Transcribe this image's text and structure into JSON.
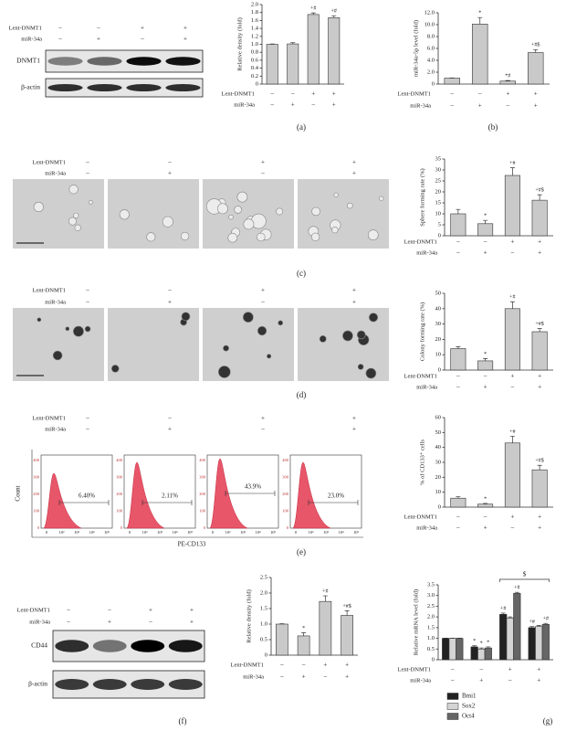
{
  "chart_data": [
    {
      "type": "bar",
      "ylabel": "Relative density (fold)",
      "ylim": [
        0,
        2
      ],
      "yticks": [
        0,
        0.2,
        0.4,
        0.6,
        0.8,
        {
          "value": 1,
          "label": "1.0"
        },
        1.2,
        1.4,
        1.6,
        1.8,
        {
          "value": 2,
          "label": "2.0"
        }
      ],
      "values": [
        1.0,
        1.01,
        1.75,
        1.67
      ],
      "errors": [
        0.01,
        0.03,
        0.04,
        0.05
      ],
      "annotations": [
        null,
        null,
        "+#",
        "+#"
      ],
      "color": "#c9c9c9",
      "conditions": [
        {
          "label": "Lent-DNMT1",
          "signs": [
            "–",
            "–",
            "+",
            "+"
          ]
        },
        {
          "label": "miR-34a",
          "signs": [
            "–",
            "+",
            "–",
            "+"
          ]
        }
      ]
    },
    {
      "type": "bar",
      "ylabel": "miR-34a-5p level (fold)",
      "ylim": [
        0,
        12
      ],
      "yticks": [
        0,
        {
          "value": 2,
          "label": "2.0"
        },
        {
          "value": 4,
          "label": "4.0"
        },
        {
          "value": 6,
          "label": "6.0"
        },
        {
          "value": 8,
          "label": "8.0"
        },
        {
          "value": 10,
          "label": "10.0"
        },
        {
          "value": 12,
          "label": "12.0"
        }
      ],
      "values": [
        1.0,
        10.1,
        0.5,
        5.3
      ],
      "errors": [
        0.05,
        1.1,
        0.1,
        0.5
      ],
      "annotations": [
        null,
        "*",
        "*#",
        "+#$"
      ],
      "color": "#c9c9c9",
      "conditions": [
        {
          "label": "Lent-DNMT1",
          "signs": [
            "–",
            "–",
            "+",
            "+"
          ]
        },
        {
          "label": "miR-34a",
          "signs": [
            "–",
            "+",
            "–",
            "+"
          ]
        }
      ]
    },
    {
      "type": "bar",
      "ylabel": "Sphere forming rate (%)",
      "ylim": [
        0,
        35
      ],
      "yticks": [
        0,
        5,
        10,
        15,
        20,
        25,
        30,
        35
      ],
      "values": [
        10,
        5.5,
        27.5,
        16.2
      ],
      "errors": [
        2,
        1.5,
        3.5,
        2.5
      ],
      "annotations": [
        null,
        "*",
        "+#",
        "+#$"
      ],
      "color": "#c9c9c9",
      "conditions": [
        {
          "label": "Lent-DNMT1",
          "signs": [
            "–",
            "–",
            "+",
            "+"
          ]
        },
        {
          "label": "miR-34a",
          "signs": [
            "–",
            "+",
            "–",
            "+"
          ]
        }
      ]
    },
    {
      "type": "bar",
      "ylabel": "Colony forming rate (%)",
      "ylim": [
        0,
        50
      ],
      "yticks": [
        0,
        10,
        20,
        30,
        40,
        50
      ],
      "values": [
        14,
        6,
        40,
        25
      ],
      "errors": [
        1.2,
        1.5,
        4.5,
        2
      ],
      "annotations": [
        null,
        "*",
        "+#",
        "+#$"
      ],
      "color": "#c9c9c9",
      "conditions": [
        {
          "label": "Lent-DNMT1",
          "signs": [
            "–",
            "–",
            "+",
            "+"
          ]
        },
        {
          "label": "miR-34a",
          "signs": [
            "–",
            "+",
            "–",
            "+"
          ]
        }
      ]
    },
    {
      "type": "bar",
      "ylabel": "% of CD133⁺ cells",
      "ylim": [
        0,
        60
      ],
      "yticks": [
        0,
        10,
        20,
        30,
        40,
        50,
        60
      ],
      "values": [
        6,
        2,
        43,
        25
      ],
      "errors": [
        1,
        0.5,
        4.5,
        3
      ],
      "annotations": [
        null,
        "*",
        "+#",
        "+#$"
      ],
      "color": "#c9c9c9",
      "conditions": [
        {
          "label": "Lent-DNMT1",
          "signs": [
            "–",
            "–",
            "+",
            "+"
          ]
        },
        {
          "label": "miR-34a",
          "signs": [
            "–",
            "+",
            "–",
            "+"
          ]
        }
      ]
    },
    {
      "type": "bar",
      "ylabel": "Relative density (fold)",
      "ylim": [
        0,
        2.5
      ],
      "yticks": [
        0,
        0.5,
        {
          "value": 1,
          "label": "1.0"
        },
        1.5,
        {
          "value": 2,
          "label": "2.0"
        },
        2.5
      ],
      "values": [
        1.0,
        0.62,
        1.73,
        1.28
      ],
      "errors": [
        0.01,
        0.1,
        0.18,
        0.15
      ],
      "annotations": [
        null,
        "*",
        "+#",
        "+#$"
      ],
      "color": "#c9c9c9",
      "conditions": [
        {
          "label": "Lent-DNMT1",
          "signs": [
            "–",
            "–",
            "+",
            "+"
          ]
        },
        {
          "label": "miR-34a",
          "signs": [
            "–",
            "+",
            "–",
            "+"
          ]
        }
      ]
    },
    {
      "type": "bar",
      "ylabel": "Relative mRNA level (fold)",
      "ylim": [
        0,
        3.5
      ],
      "yticks": [
        0,
        0.5,
        {
          "value": 1,
          "label": "1.0"
        },
        1.5,
        {
          "value": 2,
          "label": "2.0"
        },
        2.5,
        {
          "value": 3,
          "label": "3.0"
        },
        3.5
      ],
      "series": [
        {
          "name": "Bmi1",
          "color": "#222222",
          "values": [
            1.0,
            0.6,
            2.12,
            1.5
          ],
          "errors": [
            0.01,
            0.05,
            0.06,
            0.05
          ],
          "annotations": [
            null,
            "*",
            "+#",
            "+#"
          ]
        },
        {
          "name": "Sox2",
          "color": "#d4d4d4",
          "values": [
            1.0,
            0.5,
            1.95,
            1.55
          ],
          "errors": [
            0.01,
            0.05,
            0.05,
            0.05
          ],
          "annotations": [
            null,
            "*",
            null,
            null
          ]
        },
        {
          "name": "Oct4",
          "color": "#666666",
          "values": [
            1.0,
            0.55,
            3.1,
            1.65
          ],
          "errors": [
            0.01,
            0.05,
            0.05,
            0.05
          ],
          "annotations": [
            null,
            "*",
            "+#",
            "+#"
          ]
        }
      ],
      "bracket_label": "$",
      "conditions": [
        {
          "label": "Lent-DNMT1",
          "signs": [
            "–",
            "–",
            "+",
            "+"
          ]
        },
        {
          "label": "miR-34a",
          "signs": [
            "–",
            "+",
            "–",
            "+"
          ]
        }
      ]
    }
  ],
  "panels": [
    {
      "label": "(a)",
      "conditions": [
        {
          "label": "Lent-DNMT1",
          "signs": [
            "–",
            "–",
            "+",
            "+"
          ]
        },
        {
          "label": "miR-34a",
          "signs": [
            "–",
            "+",
            "–",
            "+"
          ]
        }
      ],
      "blot_rows": [
        "DNMT1",
        "β-actin"
      ]
    },
    {
      "label": "(b)"
    },
    {
      "label": "(c)",
      "conditions": [
        {
          "label": "Lent-DNMT1",
          "signs": [
            "–",
            "–",
            "+",
            "+"
          ]
        },
        {
          "label": "miR-34a",
          "signs": [
            "–",
            "+",
            "–",
            "+"
          ]
        }
      ]
    },
    {
      "label": "(d)",
      "conditions": [
        {
          "label": "Lent-DNMT1",
          "signs": [
            "–",
            "–",
            "+",
            "+"
          ]
        },
        {
          "label": "miR-34a",
          "signs": [
            "–",
            "+",
            "–",
            "+"
          ]
        }
      ]
    },
    {
      "label": "(e)",
      "conditions": [
        {
          "label": "Lent-DNMT1",
          "signs": [
            "–",
            "–",
            "+",
            "+"
          ]
        },
        {
          "label": "miR-34a",
          "signs": [
            "–",
            "+",
            "–",
            "+"
          ]
        }
      ],
      "flow": {
        "ylabel": "Count",
        "xlabel": "PE-CD133",
        "xtick_labels": [
          "0",
          "10²",
          "10³",
          "10⁴",
          "10⁵"
        ],
        "histograms": [
          {
            "percent": "6.40%",
            "yticks": [
              0,
              100,
              200,
              300,
              400
            ]
          },
          {
            "percent": "2.11%",
            "yticks": [
              0,
              100,
              200,
              300,
              400
            ]
          },
          {
            "percent": "43.9%",
            "yticks": [
              0,
              100,
              200,
              300,
              400
            ]
          },
          {
            "percent": "23.0%",
            "yticks": [
              0,
              100,
              200,
              300,
              400
            ]
          }
        ]
      }
    },
    {
      "label": "(f)",
      "conditions": [
        {
          "label": "Lent-DNMT1",
          "signs": [
            "–",
            "–",
            "+",
            "+"
          ]
        },
        {
          "label": "miR-34a",
          "signs": [
            "–",
            "+",
            "–",
            "+"
          ]
        }
      ],
      "blot_rows": [
        "CD44",
        "β-actin"
      ]
    },
    {
      "label": "(g)"
    }
  ]
}
